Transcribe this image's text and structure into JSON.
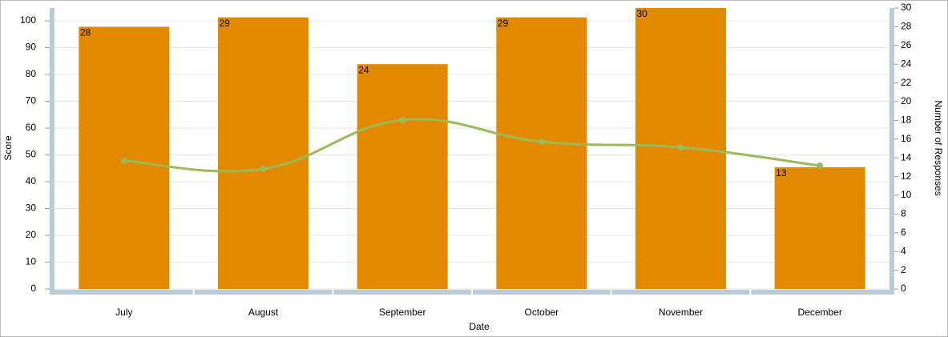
{
  "chart_data": {
    "type": "bar",
    "x_label": "Date",
    "y_label": "Score",
    "y2_label": "Number of Responses",
    "categories": [
      "July",
      "August",
      "September",
      "October",
      "November",
      "December"
    ],
    "series": [
      {
        "type": "bar",
        "axis": "y2",
        "color": "#e38900",
        "values": [
          28,
          29,
          24,
          29,
          30,
          13
        ]
      },
      {
        "type": "line",
        "axis": "y",
        "color": "#9bbb59",
        "values": [
          47.8,
          44.8,
          63,
          54.9,
          52.8,
          46
        ]
      }
    ],
    "ylim": [
      0,
      104.8
    ],
    "yticks": [
      0,
      10,
      20,
      30,
      40,
      50,
      60,
      70,
      80,
      90,
      100
    ],
    "y2lim": [
      0,
      30
    ],
    "y2ticks": [
      0,
      2,
      4,
      6,
      8,
      10,
      12,
      14,
      16,
      18,
      20,
      22,
      24,
      26,
      28,
      30
    ],
    "grid": true
  }
}
